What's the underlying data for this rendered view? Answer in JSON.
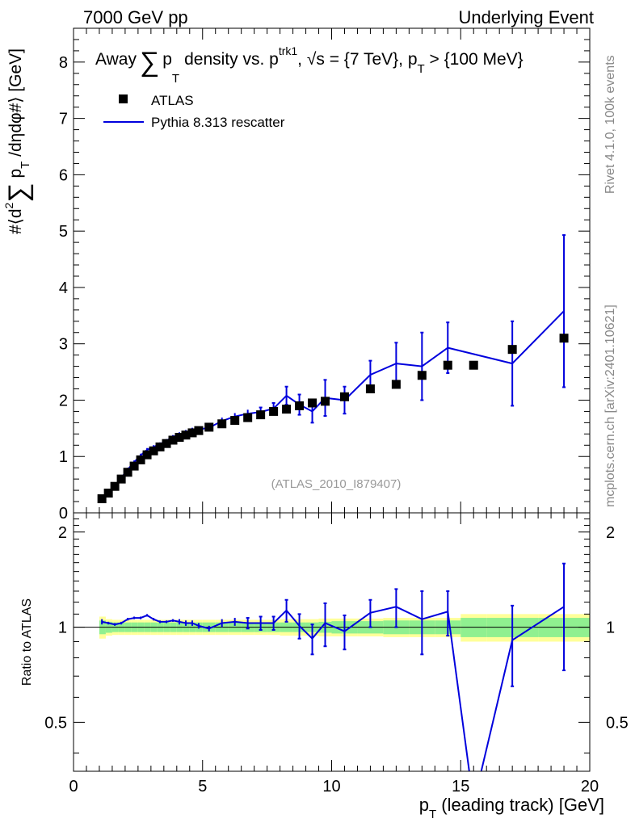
{
  "header": {
    "left": "7000 GeV pp",
    "right": "Underlying Event"
  },
  "side_labels": {
    "rivet": "Rivet 4.1.0,  100k events",
    "mcplots": "mcplots.cern.ch [arXiv:2401.10621]"
  },
  "colors": {
    "mc": "#0000dd",
    "band_inner": "#90f090",
    "band_outer": "#ffff99",
    "data": "#000000",
    "watermark": "#999999"
  },
  "chart_data": [
    {
      "type": "scatter",
      "panel": "main",
      "title": "Away ∑ p_T density vs. p_T^trk1, √s = {7 TeV}, p_T > {100 MeV}",
      "title_parts": {
        "away": "Away",
        "sum": "∑",
        "p": "p",
        "sub_t": "T",
        "density_vs": "density vs. p",
        "sup_trk1": "trk1",
        "comma_sqrt": ", √",
        "s_energy": "s = {7 TeV}, p",
        "cut": " > {100 MeV}"
      },
      "ylabel": "#⟨d² ∑ p_T /dηdφ#⟩ [GeV]",
      "ylabel_parts": {
        "head": "#⟨d",
        "sup2": "2",
        "sum": "∑",
        "p": " p",
        "sub_t": "T",
        "tail": " /dηdφ#⟩ [GeV]"
      },
      "xlim": [
        0,
        20
      ],
      "ylim": [
        0,
        8.6
      ],
      "yticks": [
        "0",
        "1",
        "2",
        "3",
        "4",
        "5",
        "6",
        "7",
        "8"
      ],
      "watermark": "(ATLAS_2010_I879407)",
      "legend": {
        "placement": "top-left",
        "entries": [
          {
            "label": "ATLAS",
            "marker": "square"
          },
          {
            "label": "Pythia 8.313 rescatter",
            "marker": "line"
          }
        ]
      },
      "series": [
        {
          "name": "ATLAS",
          "x": [
            1.1,
            1.35,
            1.6,
            1.85,
            2.1,
            2.35,
            2.6,
            2.85,
            3.1,
            3.35,
            3.6,
            3.85,
            4.1,
            4.35,
            4.6,
            4.85,
            5.25,
            5.75,
            6.25,
            6.75,
            7.25,
            7.75,
            8.25,
            8.75,
            9.25,
            9.75,
            10.5,
            11.5,
            12.5,
            13.5,
            14.5,
            15.5,
            17.0,
            19.0
          ],
          "y": [
            0.25,
            0.35,
            0.47,
            0.6,
            0.72,
            0.83,
            0.94,
            1.03,
            1.1,
            1.17,
            1.23,
            1.29,
            1.34,
            1.38,
            1.42,
            1.46,
            1.52,
            1.58,
            1.64,
            1.69,
            1.74,
            1.8,
            1.84,
            1.9,
            1.95,
            1.98,
            2.06,
            2.2,
            2.28,
            2.44,
            2.62,
            2.62,
            2.9,
            3.1
          ]
        },
        {
          "name": "Pythia 8.313 rescatter",
          "x": [
            1.1,
            1.35,
            1.6,
            1.85,
            2.1,
            2.35,
            2.6,
            2.85,
            3.1,
            3.35,
            3.6,
            3.85,
            4.1,
            4.35,
            4.6,
            4.85,
            5.25,
            5.75,
            6.25,
            6.75,
            7.25,
            7.75,
            8.25,
            8.75,
            9.25,
            9.75,
            10.5,
            11.5,
            12.5,
            13.5,
            14.5,
            17.0,
            19.0
          ],
          "y": [
            0.26,
            0.37,
            0.48,
            0.62,
            0.77,
            0.9,
            1.02,
            1.12,
            1.17,
            1.22,
            1.28,
            1.35,
            1.39,
            1.43,
            1.47,
            1.48,
            1.51,
            1.63,
            1.71,
            1.76,
            1.79,
            1.85,
            2.08,
            1.92,
            1.8,
            2.04,
            2.0,
            2.45,
            2.65,
            2.6,
            2.93,
            2.65,
            3.58
          ],
          "err": [
            0.02,
            0.02,
            0.02,
            0.02,
            0.03,
            0.03,
            0.03,
            0.03,
            0.03,
            0.03,
            0.03,
            0.03,
            0.04,
            0.04,
            0.04,
            0.05,
            0.05,
            0.06,
            0.06,
            0.07,
            0.08,
            0.1,
            0.16,
            0.18,
            0.2,
            0.32,
            0.24,
            0.25,
            0.37,
            0.6,
            0.45,
            0.75,
            1.35
          ]
        }
      ]
    },
    {
      "type": "line",
      "panel": "ratio",
      "xlabel": "p_T (leading track) [GeV]",
      "xlabel_parts": {
        "p": "p",
        "sub_t": "T",
        "rest": " (leading track) [GeV]"
      },
      "ylabel": "Ratio to ATLAS",
      "xlim": [
        0,
        20
      ],
      "ylim": [
        0.35,
        2.3
      ],
      "xticks": [
        "0",
        "5",
        "10",
        "15",
        "20"
      ],
      "yticks": [
        "0.5",
        "1",
        "2"
      ],
      "reference_line": 1.0,
      "bands": {
        "x_edges": [
          1.0,
          1.25,
          1.5,
          1.75,
          2.0,
          2.25,
          2.5,
          2.75,
          3.0,
          3.25,
          3.5,
          3.75,
          4.0,
          4.25,
          4.5,
          4.75,
          5.0,
          5.5,
          6.0,
          6.5,
          7.0,
          7.5,
          8.0,
          8.5,
          9.0,
          9.5,
          10.0,
          11.0,
          12.0,
          13.0,
          14.0,
          15.0,
          16.0,
          18.0,
          20.0
        ],
        "inner_half_width": [
          0.05,
          0.04,
          0.035,
          0.035,
          0.035,
          0.035,
          0.035,
          0.035,
          0.035,
          0.035,
          0.035,
          0.035,
          0.035,
          0.035,
          0.035,
          0.035,
          0.035,
          0.035,
          0.035,
          0.035,
          0.035,
          0.035,
          0.035,
          0.035,
          0.035,
          0.04,
          0.045,
          0.045,
          0.05,
          0.05,
          0.05,
          0.07,
          0.07,
          0.07
        ],
        "outer_half_width": [
          0.08,
          0.06,
          0.055,
          0.055,
          0.055,
          0.055,
          0.055,
          0.055,
          0.055,
          0.055,
          0.055,
          0.055,
          0.055,
          0.055,
          0.055,
          0.055,
          0.055,
          0.055,
          0.055,
          0.055,
          0.055,
          0.055,
          0.06,
          0.06,
          0.06,
          0.065,
          0.065,
          0.065,
          0.07,
          0.07,
          0.07,
          0.1,
          0.1,
          0.1
        ]
      },
      "series": [
        {
          "name": "Pythia 8.313 rescatter / ATLAS",
          "x": [
            1.1,
            1.35,
            1.6,
            1.85,
            2.1,
            2.35,
            2.6,
            2.85,
            3.1,
            3.35,
            3.6,
            3.85,
            4.1,
            4.35,
            4.6,
            4.85,
            5.25,
            5.75,
            6.25,
            6.75,
            7.25,
            7.75,
            8.25,
            8.75,
            9.25,
            9.75,
            10.5,
            11.5,
            12.5,
            13.5,
            14.5,
            15.5,
            17.0,
            19.0
          ],
          "y": [
            1.04,
            1.03,
            1.02,
            1.03,
            1.06,
            1.07,
            1.07,
            1.09,
            1.06,
            1.04,
            1.04,
            1.05,
            1.04,
            1.03,
            1.03,
            1.01,
            0.99,
            1.03,
            1.04,
            1.03,
            1.03,
            1.03,
            1.13,
            1.01,
            0.92,
            1.03,
            0.97,
            1.11,
            1.16,
            1.06,
            1.12,
            0.0,
            0.91,
            1.16
          ],
          "err": [
            0.02,
            0.01,
            0.01,
            0.01,
            0.01,
            0.01,
            0.01,
            0.01,
            0.01,
            0.01,
            0.01,
            0.01,
            0.02,
            0.02,
            0.02,
            0.02,
            0.02,
            0.03,
            0.03,
            0.04,
            0.05,
            0.05,
            0.09,
            0.09,
            0.1,
            0.16,
            0.12,
            0.11,
            0.16,
            0.24,
            0.18,
            0.0,
            0.26,
            0.43
          ]
        }
      ]
    }
  ]
}
